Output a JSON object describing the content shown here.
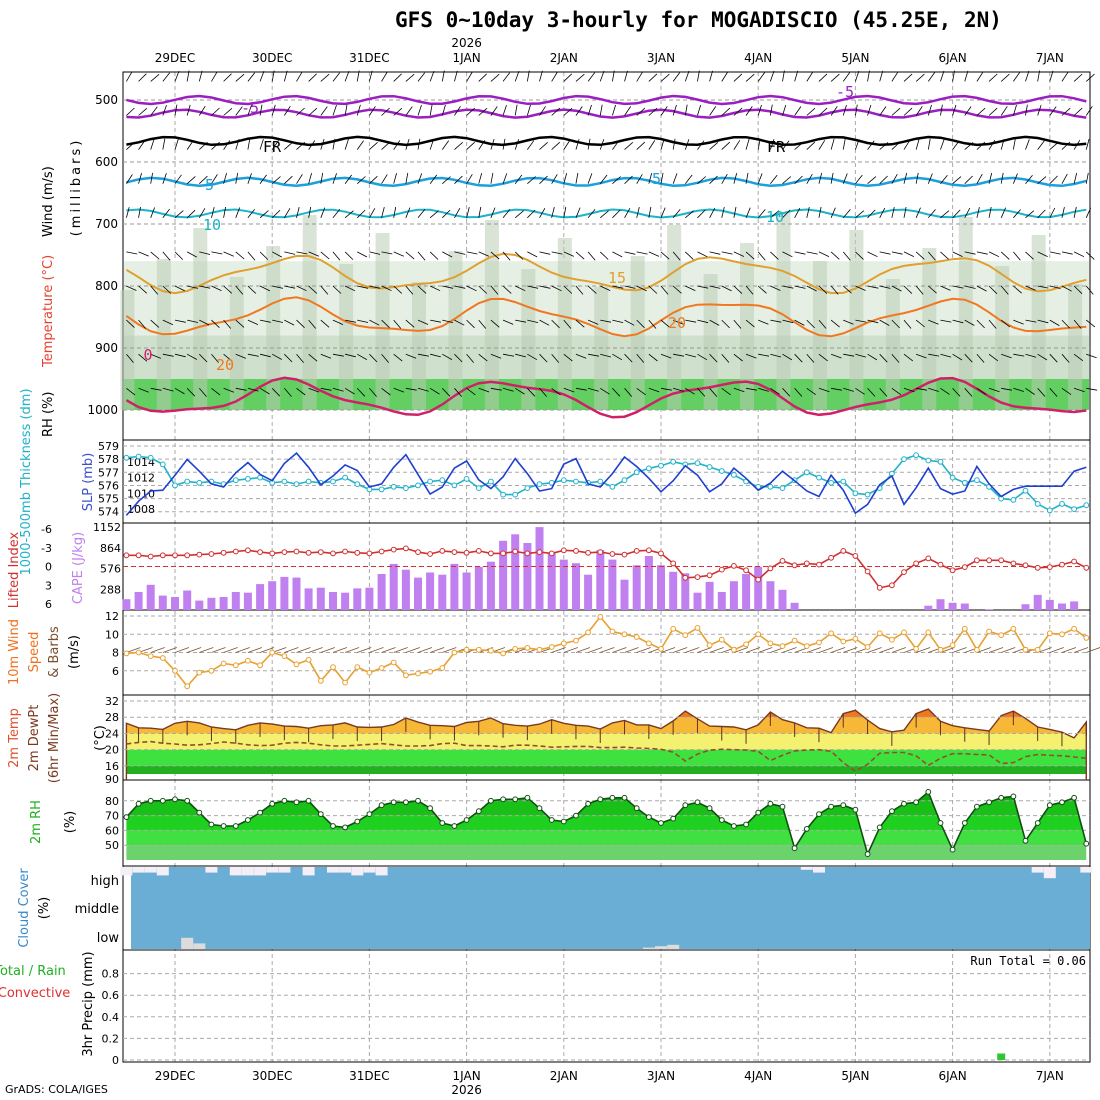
{
  "title": "GFS 0~10day 3-hourly for MOGADISCIO (45.25E, 2N)",
  "credit": "GrADS: COLA/IGES",
  "time_axis": {
    "days": [
      "29DEC",
      "30DEC",
      "31DEC",
      "1JAN",
      "2JAN",
      "3JAN",
      "4JAN",
      "5JAN",
      "6JAN",
      "7JAN"
    ],
    "year_label": "2026",
    "year_under": "1JAN",
    "start": "12Z 28DEC",
    "step_hours": 3,
    "steps": 80
  },
  "panels": {
    "upper_air": {
      "ylabel_rh": "RH (%)",
      "ylabel_temp": "Temperature (°C)",
      "ylabel_wind": "Wind (m/s)",
      "ylabel_p": "(millibars)",
      "yticks": [
        "500",
        "600",
        "700",
        "800",
        "900",
        "1000"
      ],
      "contour_labels": [
        "-5",
        "FR",
        "-5",
        "10",
        "15",
        "20",
        "0",
        "20",
        "-5",
        "FR",
        "-5",
        "10"
      ]
    },
    "thickness": {
      "ylabel_left": "1000-500mb Thickness (dm)",
      "ylabel_right": "SLP (mb)",
      "left_ticks": [
        "579",
        "578",
        "577",
        "576",
        "575",
        "574"
      ],
      "right_ticks": [
        "1014",
        "1012",
        "1010",
        "1008"
      ]
    },
    "cape": {
      "ylabel_left": "Lifted Index",
      "ylabel_right": "CAPE (J/kg)",
      "left_ticks": [
        "-6",
        "-3",
        "0",
        "3",
        "6"
      ],
      "right_ticks": [
        "1152",
        "864",
        "576",
        "288"
      ]
    },
    "wind10": {
      "ylabel_a": "10m Wind",
      "ylabel_b": "Speed",
      "ylabel_c": "(m/s)",
      "ylabel_d": "& Barbs",
      "yticks": [
        "12",
        "10",
        "8",
        "6"
      ]
    },
    "temp2m": {
      "ylabel_a": "2m Temp",
      "ylabel_b": "2m DewPt",
      "ylabel_c": "(6hr Min/Max)",
      "ylabel_d": "(°C)",
      "yticks": [
        "32",
        "28",
        "24",
        "20",
        "16"
      ],
      "bottom_tick": "90"
    },
    "rh2m": {
      "ylabel_a": "2m RH",
      "ylabel_b": "(%)",
      "yticks": [
        "80",
        "70",
        "60",
        "50"
      ]
    },
    "cloud": {
      "ylabel_a": "Cloud Cover",
      "ylabel_b": "(%)",
      "levels": [
        "high",
        "middle",
        "low"
      ]
    },
    "precip": {
      "ylabel_a": "Total / Rain",
      "ylabel_b": "Convective",
      "ylabel_c": "3hr Precip (mm)",
      "yticks": [
        "0.8",
        "0.6",
        "0.4",
        "0.2",
        "0"
      ],
      "run_total": "Run Total = 0.06"
    }
  },
  "colors": {
    "slp": "#1f3fd0",
    "thickness": "#1fb2c8",
    "lifted_index": "#d03030",
    "cape": "#c080f0",
    "wind_speed": "#e8a030",
    "temp_fill": "#f08c28",
    "dewpt": "#905030",
    "rh_fill": "#20c020",
    "cloud_blue": "#6aaed6",
    "precip_bar": "#2ec82e"
  },
  "chart_data": {
    "type": "meteogram",
    "title": "GFS 0~10day 3-hourly for MOGADISCIO (45.25E, 2N)",
    "x_unit": "3-hourly steps from 12Z 28DEC 2025",
    "series": [
      {
        "name": "SLP (mb)",
        "ylim": [
          1007,
          1016
        ],
        "values": [
          1007.2,
          1009,
          1010.3,
          1010.4,
          1012.3,
          1014.3,
          1012.8,
          1011.2,
          1010.8,
          1012.6,
          1013.9,
          1012.4,
          1011.6,
          1013.8,
          1015.1,
          1013.3,
          1011.1,
          1012.2,
          1013.6,
          1012.9,
          1010.8,
          1011.2,
          1013.3,
          1014.9,
          1012.4,
          1009.9,
          1010.8,
          1013.2,
          1014.1,
          1011.7,
          1010.6,
          1012.1,
          1014.4,
          1012.5,
          1010.3,
          1010.6,
          1013.7,
          1014.4,
          1011.2,
          1010.8,
          1012.5,
          1014.6,
          1013.4,
          1011.9,
          1010.2,
          1011.6,
          1013.5,
          1012.3,
          1010.2,
          1011.2,
          1013.2,
          1011.9,
          1010.4,
          1011.3,
          1012.8,
          1011.6,
          1010.3,
          1009.6,
          1012.3,
          1010.4,
          1007.5,
          1008.6,
          1011.1,
          1012.2,
          1008.6,
          1010.7,
          1013.2,
          1010.6,
          1009.9,
          1010.3,
          1013.4,
          1011.2,
          1009.6,
          1010.5,
          1010.9,
          1010.9,
          1010.9,
          1010.9,
          1012.8,
          1013.3
        ]
      },
      {
        "name": "1000-500mb Thickness (dm)",
        "ylim": [
          573.6,
          579
        ],
        "values": [
          578.1,
          578.2,
          578.1,
          577.6,
          576.0,
          576.3,
          576.2,
          576.3,
          576.1,
          576.4,
          576.5,
          576.6,
          576.2,
          576.3,
          576.1,
          576.3,
          576.2,
          576.3,
          576.6,
          576.1,
          575.7,
          575.7,
          575.9,
          575.8,
          576.0,
          576.3,
          576.4,
          576.0,
          576.5,
          575.8,
          576.3,
          575.3,
          575.3,
          575.8,
          576.1,
          576.2,
          576.4,
          576.3,
          576.2,
          576.3,
          575.9,
          576.4,
          577.0,
          577.3,
          577.5,
          577.8,
          577.6,
          577.7,
          577.4,
          577.1,
          576.8,
          576.3,
          575.9,
          575.9,
          575.8,
          576.4,
          577.0,
          576.6,
          576.2,
          576.3,
          575.4,
          575.3,
          575.8,
          576.9,
          578.0,
          578.3,
          577.9,
          577.8,
          576.6,
          576.2,
          576.4,
          575.9,
          575.0,
          574.9,
          575.6,
          574.6,
          574.1,
          574.6,
          574.2,
          574.5
        ]
      },
      {
        "name": "Lifted Index",
        "ylim": [
          6,
          -6
        ],
        "values": [
          -1.8,
          -1.8,
          -1.6,
          -1.8,
          -1.8,
          -1.8,
          -1.9,
          -2.0,
          -2.2,
          -2.4,
          -2.6,
          -2.3,
          -2.1,
          -2.3,
          -2.4,
          -2.2,
          -2.3,
          -2.1,
          -2.4,
          -2.2,
          -2.1,
          -2.4,
          -2.7,
          -2.9,
          -2.3,
          -2.0,
          -2.5,
          -2.3,
          -2.2,
          -2.5,
          -2.1,
          -2.1,
          -2.4,
          -2.1,
          -2.3,
          -2.1,
          -2.6,
          -2.5,
          -2.2,
          -2.3,
          -2.0,
          -1.9,
          -2.5,
          -2.6,
          -2.1,
          -0.5,
          1.8,
          1.7,
          1.4,
          0.5,
          -0.1,
          0.6,
          2.1,
          0.3,
          -0.9,
          -0.2,
          -0.5,
          -0.3,
          -1.4,
          -2.5,
          -1.7,
          0.8,
          3.4,
          3.0,
          0.9,
          -0.5,
          -1.3,
          -0.3,
          0.6,
          0.1,
          -1.0,
          -1.0,
          -1.0,
          -0.5,
          -0.2,
          0.2,
          0.1,
          -0.3,
          -0.8,
          0.2
        ]
      },
      {
        "name": "CAPE (J/kg)",
        "ylim": [
          0,
          1152
        ],
        "values": [
          150,
          250,
          350,
          200,
          180,
          270,
          130,
          170,
          180,
          250,
          240,
          360,
          400,
          460,
          450,
          300,
          310,
          250,
          240,
          300,
          310,
          500,
          640,
          560,
          450,
          520,
          490,
          640,
          520,
          600,
          670,
          960,
          1050,
          930,
          1150,
          790,
          700,
          650,
          490,
          830,
          700,
          420,
          620,
          750,
          620,
          530,
          510,
          240,
          390,
          250,
          400,
          500,
          600,
          400,
          280,
          100,
          0,
          0,
          0,
          0,
          0,
          0,
          0,
          0,
          0,
          0,
          60,
          150,
          100,
          90,
          0,
          10,
          0,
          0,
          80,
          210,
          140,
          90,
          120,
          0
        ]
      },
      {
        "name": "10m Wind Speed (m/s)",
        "ylim": [
          4,
          12
        ],
        "values": [
          7.9,
          8.0,
          7.6,
          7.4,
          6.0,
          4.3,
          5.8,
          6.0,
          6.8,
          6.6,
          7.1,
          6.6,
          8.0,
          7.6,
          6.7,
          7.2,
          4.9,
          6.4,
          4.7,
          6.4,
          5.8,
          6.3,
          6.9,
          5.5,
          5.7,
          5.9,
          6.3,
          8.0,
          8.3,
          8.3,
          8.2,
          7.9,
          8.4,
          8.5,
          8.3,
          8.6,
          9.0,
          9.3,
          10.2,
          11.9,
          10.3,
          10.0,
          9.7,
          9.0,
          8.4,
          10.6,
          9.9,
          10.7,
          8.8,
          9.4,
          8.3,
          8.9,
          10.0,
          9.0,
          8.7,
          9.3,
          8.7,
          9.1,
          10.1,
          9.2,
          9.5,
          8.6,
          10.1,
          9.4,
          10.2,
          8.4,
          10.2,
          8.3,
          8.8,
          10.6,
          8.3,
          10.3,
          9.9,
          10.6,
          8.3,
          8.3,
          10.1,
          10.0,
          10.6,
          9.6
        ]
      },
      {
        "name": "2m Temp (°C)",
        "ylim": [
          14,
          32
        ],
        "values": [
          26.5,
          25.4,
          25.3,
          25.0,
          26.5,
          27.0,
          26.6,
          25.6,
          25.2,
          24.9,
          26.0,
          26.6,
          26.3,
          25.8,
          25.7,
          25.3,
          25.9,
          26.1,
          26.6,
          25.6,
          25.5,
          25.6,
          26.2,
          27.8,
          26.8,
          26.0,
          25.9,
          25.7,
          26.7,
          27.0,
          27.8,
          26.4,
          26.0,
          25.8,
          26.3,
          27.4,
          26.5,
          26.0,
          25.8,
          25.1,
          26.6,
          27.2,
          26.1,
          26.1,
          25.2,
          27.1,
          29.5,
          27.6,
          25.8,
          25.7,
          25.6,
          24.9,
          26.1,
          29.3,
          27.4,
          26.6,
          25.4,
          25.3,
          24.2,
          28.9,
          29.7,
          27.3,
          25.2,
          24.4,
          24.8,
          28.9,
          30.0,
          27.0,
          25.9,
          25.4,
          25.0,
          24.6,
          28.4,
          29.5,
          27.7,
          25.6,
          25.0,
          24.3,
          22.9,
          26.8
        ]
      },
      {
        "name": "2m DewPt (°C)",
        "ylim": [
          14,
          32
        ],
        "values": [
          21.4,
          21.8,
          22.0,
          21.6,
          21.4,
          21.1,
          21.2,
          21.5,
          21.9,
          21.6,
          21.2,
          21.0,
          21.1,
          21.6,
          21.8,
          21.6,
          21.2,
          20.9,
          20.9,
          21.1,
          21.3,
          21.5,
          21.2,
          20.9,
          20.9,
          21.0,
          21.5,
          21.6,
          21.0,
          21.0,
          20.9,
          20.7,
          21.1,
          21.1,
          20.9,
          20.6,
          20.7,
          20.8,
          20.8,
          20.5,
          20.5,
          20.6,
          20.4,
          20.3,
          20.1,
          19.4,
          17.2,
          18.9,
          19.9,
          20.1,
          20.0,
          19.9,
          19.6,
          17.3,
          18.6,
          19.7,
          19.9,
          20.0,
          19.6,
          16.8,
          14.7,
          16.4,
          19.1,
          19.3,
          19.3,
          18.5,
          16.1,
          17.9,
          19.0,
          19.0,
          18.8,
          18.7,
          16.6,
          16.8,
          18.3,
          18.8,
          18.6,
          18.5,
          18.2,
          17.9
        ]
      },
      {
        "name": "2m RH (%)",
        "ylim": [
          40,
          90
        ],
        "values": [
          69,
          78,
          80,
          80,
          81,
          80,
          72,
          64,
          63,
          63,
          67,
          72,
          78,
          80,
          79,
          80,
          71,
          63,
          62,
          66,
          71,
          77,
          79,
          79,
          80,
          75,
          65,
          63,
          67,
          73,
          80,
          81,
          81,
          82,
          75,
          67,
          66,
          70,
          78,
          81,
          82,
          82,
          75,
          69,
          65,
          68,
          77,
          79,
          75,
          67,
          63,
          64,
          72,
          78,
          76,
          48,
          61,
          71,
          76,
          77,
          74,
          44,
          62,
          73,
          78,
          79,
          86,
          65,
          47,
          65,
          76,
          79,
          82,
          83,
          53,
          65,
          77,
          79,
          82,
          51
        ]
      },
      {
        "name": "High Cloud (%)",
        "ylim": [
          0,
          100
        ],
        "values": [
          30,
          20,
          20,
          30,
          0,
          0,
          0,
          20,
          0,
          30,
          30,
          30,
          20,
          20,
          0,
          30,
          0,
          20,
          20,
          30,
          20,
          30,
          0,
          0,
          0,
          0,
          0,
          0,
          0,
          0,
          0,
          0,
          0,
          0,
          0,
          0,
          0,
          0,
          0,
          0,
          0,
          0,
          0,
          0,
          0,
          0,
          0,
          0,
          0,
          0,
          0,
          0,
          0,
          0,
          0,
          0,
          10,
          20,
          0,
          0,
          0,
          0,
          0,
          0,
          0,
          0,
          0,
          0,
          0,
          0,
          0,
          0,
          0,
          0,
          0,
          20,
          40,
          0,
          0,
          20
        ]
      },
      {
        "name": "Low Cloud (%)",
        "ylim": [
          0,
          100
        ],
        "values": [
          0,
          0,
          0,
          0,
          0,
          40,
          20,
          0,
          0,
          0,
          0,
          0,
          0,
          0,
          0,
          0,
          0,
          0,
          0,
          0,
          0,
          0,
          0,
          0,
          0,
          0,
          0,
          0,
          0,
          0,
          0,
          0,
          0,
          0,
          0,
          0,
          0,
          0,
          0,
          0,
          0,
          0,
          0,
          5,
          10,
          15,
          0,
          0,
          0,
          0,
          0,
          0,
          0,
          0,
          0,
          0,
          0,
          0,
          0,
          0,
          0,
          0,
          0,
          0,
          0,
          0,
          0,
          0,
          0,
          0,
          0,
          0,
          0,
          0,
          0,
          0,
          0,
          0,
          0,
          0
        ]
      },
      {
        "name": "3hr Precip (mm)",
        "ylim": [
          0,
          1
        ],
        "values": [
          0,
          0,
          0,
          0,
          0,
          0,
          0,
          0,
          0,
          0,
          0,
          0,
          0,
          0,
          0,
          0,
          0,
          0,
          0,
          0,
          0,
          0,
          0,
          0,
          0,
          0,
          0,
          0,
          0,
          0,
          0,
          0,
          0,
          0,
          0,
          0,
          0,
          0,
          0,
          0,
          0,
          0,
          0,
          0,
          0,
          0,
          0,
          0,
          0,
          0,
          0,
          0,
          0,
          0,
          0,
          0,
          0,
          0,
          0,
          0,
          0,
          0,
          0,
          0,
          0,
          0,
          0,
          0,
          0,
          0,
          0,
          0,
          0.06,
          0,
          0,
          0,
          0,
          0,
          0,
          0
        ]
      }
    ],
    "upper_air_contours": [
      {
        "name": "-5",
        "level_mb": 500
      },
      {
        "name": "FR",
        "level_mb": 566
      },
      {
        "name": "5",
        "level_mb": 630
      },
      {
        "name": "10",
        "level_mb": 680
      },
      {
        "name": "15",
        "level_mb": 775
      },
      {
        "name": "20",
        "level_mb": 840
      }
    ],
    "run_total_mm": 0.06
  }
}
